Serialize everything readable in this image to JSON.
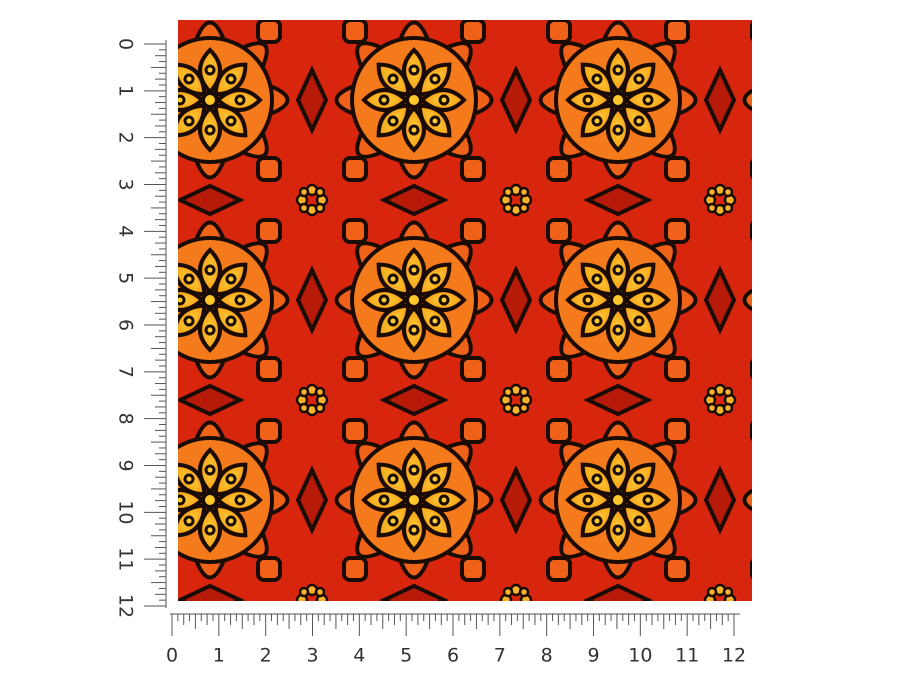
{
  "left_ruler": {
    "labels": [
      0,
      1,
      2,
      3,
      4,
      5,
      6,
      7,
      8,
      9,
      10,
      11,
      12
    ]
  },
  "bottom_ruler": {
    "labels": [
      0,
      1,
      2,
      3,
      4,
      5,
      6,
      7,
      8,
      9,
      10,
      11,
      12
    ]
  }
}
